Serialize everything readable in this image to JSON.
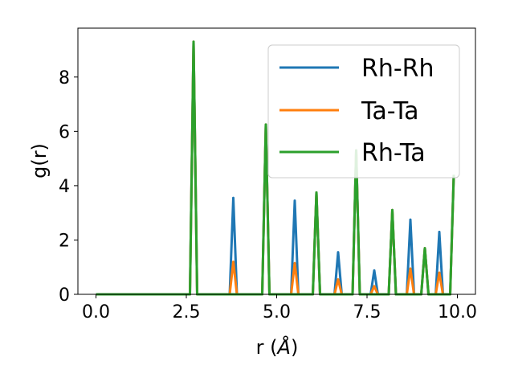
{
  "chart_data": {
    "type": "line",
    "xlabel_main": "r (",
    "xlabel_unit": "Å",
    "xlabel_close": ")",
    "ylabel": "g(r)",
    "xlim": [
      -0.5,
      10.5
    ],
    "ylim": [
      0,
      9.8
    ],
    "xticks": [
      0.0,
      2.5,
      5.0,
      7.5,
      10.0
    ],
    "xtick_labels": [
      "0.0",
      "2.5",
      "5.0",
      "7.5",
      "10.0"
    ],
    "yticks": [
      0,
      2,
      4,
      6,
      8
    ],
    "ytick_labels": [
      "0",
      "2",
      "4",
      "6",
      "8"
    ],
    "grid": false,
    "legend_position": "top-right",
    "peak_width": 0.1,
    "x_range": [
      0.0,
      9.9
    ],
    "series": [
      {
        "name": "Rh-Rh",
        "color": "#1f77b4",
        "peaks": [
          [
            2.7,
            9.3
          ],
          [
            3.8,
            3.55
          ],
          [
            4.7,
            6.25
          ],
          [
            5.5,
            3.45
          ],
          [
            6.1,
            3.75
          ],
          [
            6.7,
            1.55
          ],
          [
            7.2,
            5.3
          ],
          [
            7.7,
            0.88
          ],
          [
            8.2,
            3.1
          ],
          [
            8.7,
            2.75
          ],
          [
            9.1,
            1.7
          ],
          [
            9.5,
            2.3
          ],
          [
            9.9,
            4.4
          ]
        ]
      },
      {
        "name": "Ta-Ta",
        "color": "#ff7f0e",
        "peaks": [
          [
            2.7,
            9.3
          ],
          [
            3.8,
            1.2
          ],
          [
            4.7,
            6.25
          ],
          [
            5.5,
            1.15
          ],
          [
            6.1,
            3.75
          ],
          [
            6.7,
            0.55
          ],
          [
            7.2,
            5.3
          ],
          [
            7.7,
            0.3
          ],
          [
            8.2,
            3.1
          ],
          [
            8.7,
            0.95
          ],
          [
            9.1,
            1.7
          ],
          [
            9.5,
            0.8
          ],
          [
            9.9,
            4.4
          ]
        ]
      },
      {
        "name": "Rh-Ta",
        "color": "#2ca02c",
        "peaks": [
          [
            2.7,
            9.3
          ],
          [
            4.7,
            6.25
          ],
          [
            6.1,
            3.75
          ],
          [
            7.2,
            5.3
          ],
          [
            8.2,
            3.1
          ],
          [
            9.1,
            1.7
          ],
          [
            9.9,
            4.4
          ]
        ]
      }
    ]
  }
}
